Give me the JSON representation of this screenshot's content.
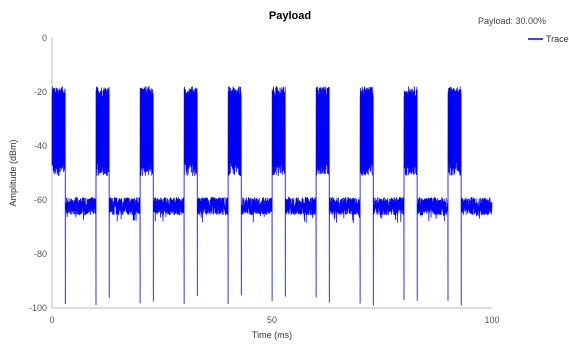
{
  "chart_data": {
    "type": "line",
    "title": "Payload",
    "annotation": "Payload: 30.00%",
    "xlabel": "Time (ms)",
    "ylabel": "Amplitude (dBm)",
    "xlim": [
      0,
      100
    ],
    "ylim": [
      -100,
      0
    ],
    "x_ticks": [
      0,
      50,
      100
    ],
    "y_ticks": [
      0,
      -20,
      -40,
      -60,
      -80,
      -100
    ],
    "x_tick_labels": [
      "0",
      "50",
      "100"
    ],
    "y_tick_labels": [
      "0",
      "-20",
      "-40",
      "-60",
      "-80",
      "-100"
    ],
    "grid": false,
    "legend_position": "top-right",
    "series": [
      {
        "name": "Trace",
        "color": "#0000ff",
        "burst_period_ms": 10,
        "burst_duty_cycle": 0.3,
        "burst_starts_ms": [
          0,
          10,
          20,
          30,
          40,
          50,
          60,
          70,
          80,
          90
        ],
        "on_level_dbm": [
          -48,
          -20
        ],
        "off_level_dbm": [
          -69,
          -59
        ],
        "transition_dip_dbm": -95
      }
    ]
  }
}
